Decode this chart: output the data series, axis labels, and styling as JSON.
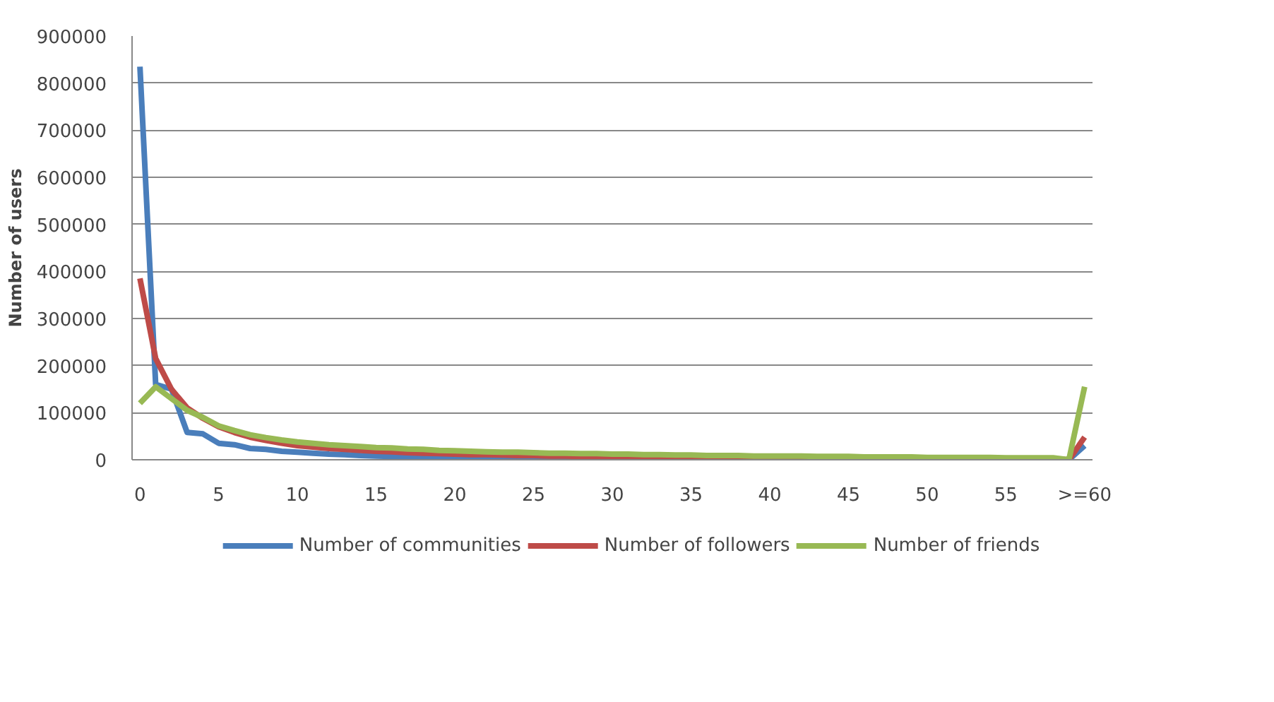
{
  "chart_data": {
    "type": "line",
    "ylabel": "Number of users",
    "categories": [
      "0",
      null,
      null,
      null,
      null,
      "5",
      null,
      null,
      null,
      null,
      "10",
      null,
      null,
      null,
      null,
      "15",
      null,
      null,
      null,
      null,
      "20",
      null,
      null,
      null,
      null,
      "25",
      null,
      null,
      null,
      null,
      "30",
      null,
      null,
      null,
      null,
      "35",
      null,
      null,
      null,
      null,
      "40",
      null,
      null,
      null,
      null,
      "45",
      null,
      null,
      null,
      null,
      "50",
      null,
      null,
      null,
      null,
      "55",
      null,
      null,
      null,
      null,
      ">=60"
    ],
    "series": [
      {
        "name": "Number of communities",
        "color": "#4a7ebb",
        "values": [
          835000,
          160000,
          150000,
          58000,
          55000,
          35000,
          32000,
          24000,
          22000,
          18000,
          16000,
          14000,
          12000,
          11000,
          9000,
          8000,
          7000,
          7000,
          6000,
          6000,
          5000,
          5000,
          4000,
          4000,
          4000,
          4000,
          3000,
          3000,
          null,
          null,
          null,
          null,
          null,
          null,
          null,
          null,
          null,
          null,
          null,
          null,
          null,
          null,
          null,
          null,
          null,
          null,
          null,
          null,
          null,
          null,
          null,
          null,
          null,
          null,
          null,
          null,
          null,
          null,
          null,
          0,
          30000
        ]
      },
      {
        "name": "Number of followers",
        "color": "#be4b48",
        "values": [
          385000,
          215000,
          150000,
          110000,
          88000,
          70000,
          58000,
          48000,
          41000,
          35000,
          30000,
          27000,
          24000,
          22000,
          20000,
          18000,
          17000,
          15000,
          14000,
          13000,
          12000,
          11000,
          11000,
          10000,
          9000,
          9000,
          8000,
          8000,
          7000,
          7000,
          6000,
          6000,
          5000,
          5000,
          5000,
          5000,
          4000,
          4000,
          4000,
          4000,
          4000,
          3000,
          3000,
          3000,
          3000,
          3000,
          3000,
          3000,
          3000,
          3000,
          2000,
          2000,
          2000,
          2000,
          2000,
          2000,
          2000,
          2000,
          2000,
          0,
          48000
        ]
      },
      {
        "name": "Number of friends",
        "color": "#98b954",
        "values": [
          120000,
          155000,
          130000,
          105000,
          90000,
          72000,
          62000,
          53000,
          47000,
          42000,
          38000,
          35000,
          32000,
          30000,
          28000,
          26000,
          25000,
          23000,
          22000,
          20000,
          19000,
          18000,
          17000,
          16000,
          16000,
          15000,
          14000,
          14000,
          13000,
          13000,
          12000,
          12000,
          11000,
          11000,
          10000,
          10000,
          9000,
          9000,
          9000,
          8000,
          8000,
          8000,
          8000,
          7000,
          7000,
          7000,
          6000,
          6000,
          6000,
          6000,
          5000,
          5000,
          5000,
          5000,
          5000,
          4000,
          4000,
          4000,
          4000,
          0,
          155000
        ]
      }
    ],
    "ylim": [
      0,
      900000
    ],
    "yticks": [
      0,
      100000,
      200000,
      300000,
      400000,
      500000,
      600000,
      700000,
      800000,
      900000
    ],
    "grid": "y",
    "legend": "bottom",
    "marker": "none",
    "line_style": "solid"
  }
}
